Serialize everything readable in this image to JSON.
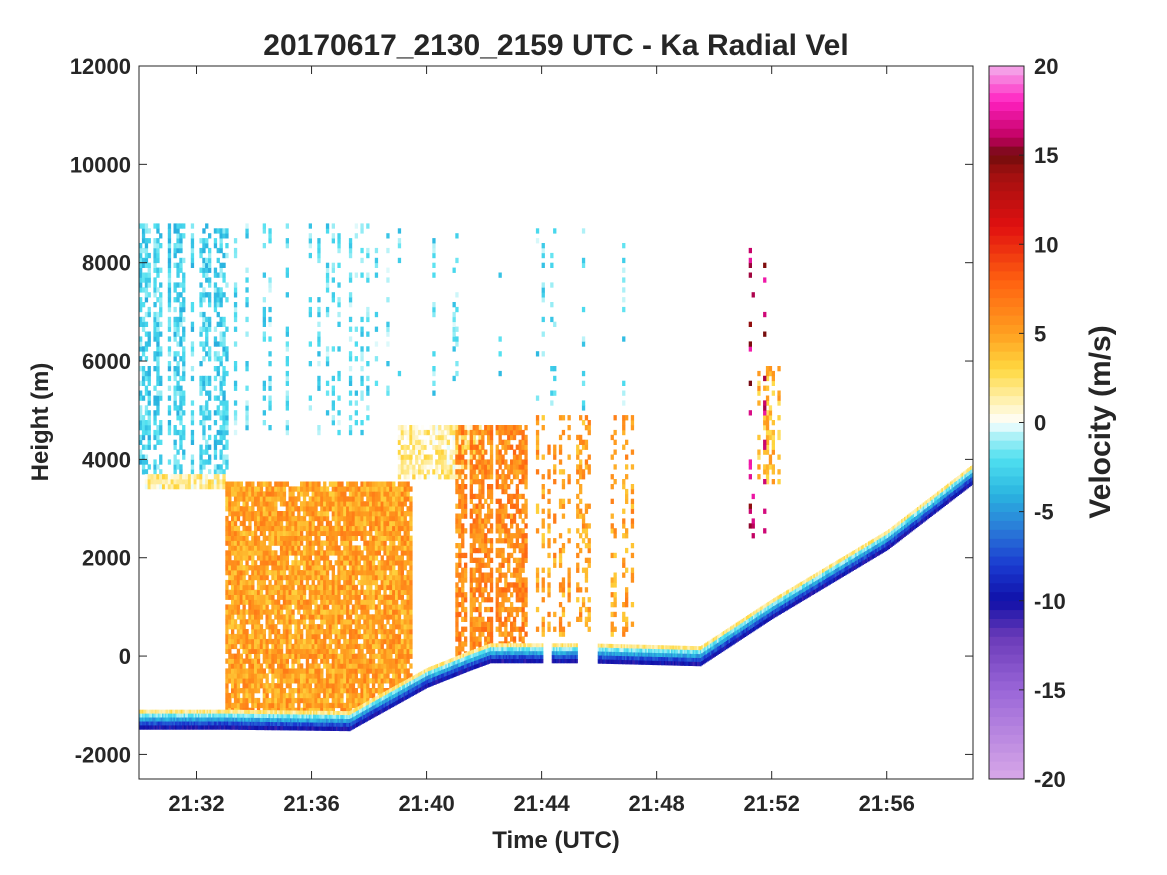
{
  "chart_data": {
    "type": "heatmap",
    "title": "20170617_2130_2159 UTC - Ka Radial Vel",
    "xlabel": "Time (UTC)",
    "ylabel": "Height (m)",
    "colorbar_label": "Velocity (m/s)",
    "x_range_minutes": [
      30,
      59
    ],
    "x_ticks": [
      {
        "minute": 32,
        "label": "21:32"
      },
      {
        "minute": 36,
        "label": "21:36"
      },
      {
        "minute": 40,
        "label": "21:40"
      },
      {
        "minute": 44,
        "label": "21:44"
      },
      {
        "minute": 48,
        "label": "21:48"
      },
      {
        "minute": 52,
        "label": "21:52"
      },
      {
        "minute": 56,
        "label": "21:56"
      }
    ],
    "ylim": [
      -2500,
      12000
    ],
    "y_ticks": [
      {
        "value": 12000,
        "label": "12000"
      },
      {
        "value": 10000,
        "label": "10000"
      },
      {
        "value": 8000,
        "label": "8000"
      },
      {
        "value": 6000,
        "label": "6000"
      },
      {
        "value": 4000,
        "label": "4000"
      },
      {
        "value": 2000,
        "label": "2000"
      },
      {
        "value": 0,
        "label": "0"
      },
      {
        "value": -2000,
        "label": "-2000"
      }
    ],
    "colorbar_range": [
      -20,
      20
    ],
    "colorbar_ticks": [
      {
        "value": 20,
        "label": "20"
      },
      {
        "value": 15,
        "label": "15"
      },
      {
        "value": 10,
        "label": "10"
      },
      {
        "value": 5,
        "label": "5"
      },
      {
        "value": 0,
        "label": "0"
      },
      {
        "value": -5,
        "label": "-5"
      },
      {
        "value": -10,
        "label": "-10"
      },
      {
        "value": -15,
        "label": "-15"
      },
      {
        "value": -20,
        "label": "-20"
      }
    ],
    "colormap_stops": [
      {
        "v": -20,
        "color": "#d8a8e8"
      },
      {
        "v": -15,
        "color": "#9a66d8"
      },
      {
        "v": -12,
        "color": "#6a3ab8"
      },
      {
        "v": -10,
        "color": "#1010a8"
      },
      {
        "v": -8,
        "color": "#1a3ad0"
      },
      {
        "v": -6,
        "color": "#2a7ad8"
      },
      {
        "v": -4,
        "color": "#2ab4e0"
      },
      {
        "v": -2,
        "color": "#50e0f0"
      },
      {
        "v": -0.5,
        "color": "#c0f4f8"
      },
      {
        "v": 0,
        "color": "#ffffff"
      },
      {
        "v": 1,
        "color": "#fff4c0"
      },
      {
        "v": 3,
        "color": "#ffd840"
      },
      {
        "v": 5,
        "color": "#ffa020"
      },
      {
        "v": 8,
        "color": "#ff6010"
      },
      {
        "v": 11,
        "color": "#e01010"
      },
      {
        "v": 14,
        "color": "#a01010"
      },
      {
        "v": 15,
        "color": "#700c0c"
      },
      {
        "v": 16,
        "color": "#c00060"
      },
      {
        "v": 18,
        "color": "#ff20c0"
      },
      {
        "v": 20,
        "color": "#f4b0ec"
      }
    ],
    "ground_line": [
      {
        "t": 30,
        "h": -1350
      },
      {
        "t": 33,
        "h": -1350
      },
      {
        "t": 37.3,
        "h": -1380
      },
      {
        "t": 38,
        "h": -1150
      },
      {
        "t": 40,
        "h": -500
      },
      {
        "t": 41.5,
        "h": -150
      },
      {
        "t": 42.2,
        "h": 0
      },
      {
        "t": 43.5,
        "h": 0
      },
      {
        "t": 45.5,
        "h": 0
      },
      {
        "t": 49.5,
        "h": -60
      },
      {
        "t": 52,
        "h": 900
      },
      {
        "t": 56,
        "h": 2300
      },
      {
        "t": 59,
        "h": 3650
      }
    ],
    "regions": [
      {
        "t0": 30.0,
        "t1": 33.2,
        "h0": 3700,
        "h1": 8800,
        "v": -2.5,
        "density": 0.45
      },
      {
        "t0": 33.2,
        "t1": 38.0,
        "h0": 4500,
        "h1": 8800,
        "v": -2.0,
        "density": 0.25
      },
      {
        "t0": 38.0,
        "t1": 47.3,
        "h0": 5000,
        "h1": 8700,
        "v": -2.0,
        "density": 0.1
      },
      {
        "t0": 30.2,
        "t1": 33.0,
        "h0": 3400,
        "h1": 3700,
        "v": 1.5,
        "density": 0.9
      },
      {
        "t0": 33.0,
        "t1": 39.5,
        "h0": -1150,
        "h1": 3500,
        "v": 5.0,
        "density": 0.75
      },
      {
        "t0": 39.0,
        "t1": 42.0,
        "h0": 3600,
        "h1": 4700,
        "v": 1.5,
        "density": 0.6
      },
      {
        "t0": 41.0,
        "t1": 43.5,
        "h0": 0,
        "h1": 4700,
        "v": 6.0,
        "density": 0.55
      },
      {
        "t0": 43.5,
        "t1": 47.3,
        "h0": 400,
        "h1": 4900,
        "v": 5.0,
        "density": 0.25
      },
      {
        "t0": 51.5,
        "t1": 52.6,
        "h0": 3500,
        "h1": 5900,
        "v": 4.0,
        "density": 0.3
      },
      {
        "t0": 50.5,
        "t1": 52.8,
        "h0": 2400,
        "h1": 8500,
        "v": 16.0,
        "density": 0.04
      }
    ]
  }
}
